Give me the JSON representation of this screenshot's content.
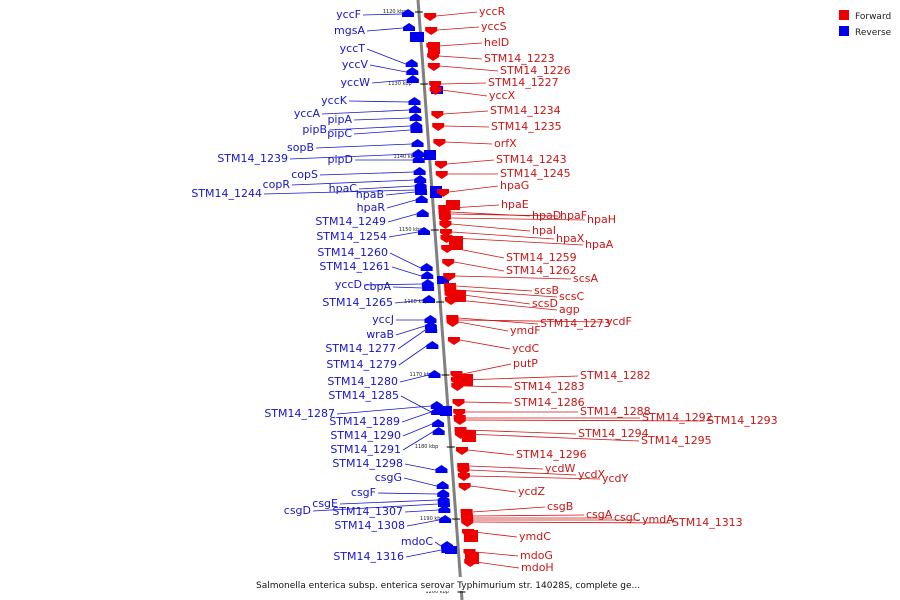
{
  "legend": {
    "forward_label": "Forward",
    "reverse_label": "Reverse",
    "forward_color": "#ee0000",
    "reverse_color": "#0000ee"
  },
  "caption": "Salmonella enterica subsp. enterica serovar Typhimurium str. 14028S, complete ge...",
  "scale_ticks": [
    "1120 kbp",
    "1130 kbp",
    "1140 kbp",
    "1150 kbp",
    "1160 kbp",
    "1170 kbp",
    "1180 kbp",
    "1190 kbp",
    "1200 kbp"
  ],
  "reverse_genes": [
    "yccF",
    "mgsA",
    "yccT",
    "yccV",
    "yccW",
    "yccK",
    "yccA",
    "pipA",
    "pipB",
    "pipC",
    "sopB",
    "STM14_1239",
    "pipD",
    "copS",
    "copR",
    "hpaC",
    "STM14_1244",
    "hpaB",
    "hpaR",
    "STM14_1249",
    "STM14_1254",
    "STM14_1260",
    "STM14_1261",
    "yccD",
    "cbpA",
    "STM14_1265",
    "yccJ",
    "wraB",
    "STM14_1277",
    "STM14_1279",
    "STM14_1280",
    "STM14_1285",
    "STM14_1287",
    "STM14_1289",
    "STM14_1290",
    "STM14_1291",
    "STM14_1298",
    "csgG",
    "csgF",
    "csgE",
    "csgD",
    "STM14_1307",
    "STM14_1308",
    "mdoC",
    "STM14_1316"
  ],
  "forward_genes": [
    "yccR",
    "yccS",
    "helD",
    "STM14_1223",
    "STM14_1226",
    "STM14_1227",
    "yccX",
    "STM14_1234",
    "STM14_1235",
    "orfX",
    "STM14_1243",
    "STM14_1245",
    "hpaG",
    "hpaE",
    "hpaD",
    "hpaF",
    "hpaH",
    "hpaI",
    "hpaX",
    "hpaA",
    "STM14_1259",
    "STM14_1262",
    "scsA",
    "scsB",
    "scsC",
    "scsD",
    "agp",
    "ymdF",
    "STM14_1273",
    "ycdF",
    "ycdC",
    "putP",
    "STM14_1282",
    "STM14_1283",
    "STM14_1286",
    "STM14_1288",
    "STM14_1292",
    "STM14_1293",
    "STM14_1294",
    "STM14_1295",
    "STM14_1296",
    "ycdW",
    "ycdX",
    "ycdY",
    "ycdZ",
    "csgB",
    "csgA",
    "csgC",
    "ymdA",
    "STM14_1313",
    "ymdC",
    "mdoG",
    "mdoH"
  ]
}
